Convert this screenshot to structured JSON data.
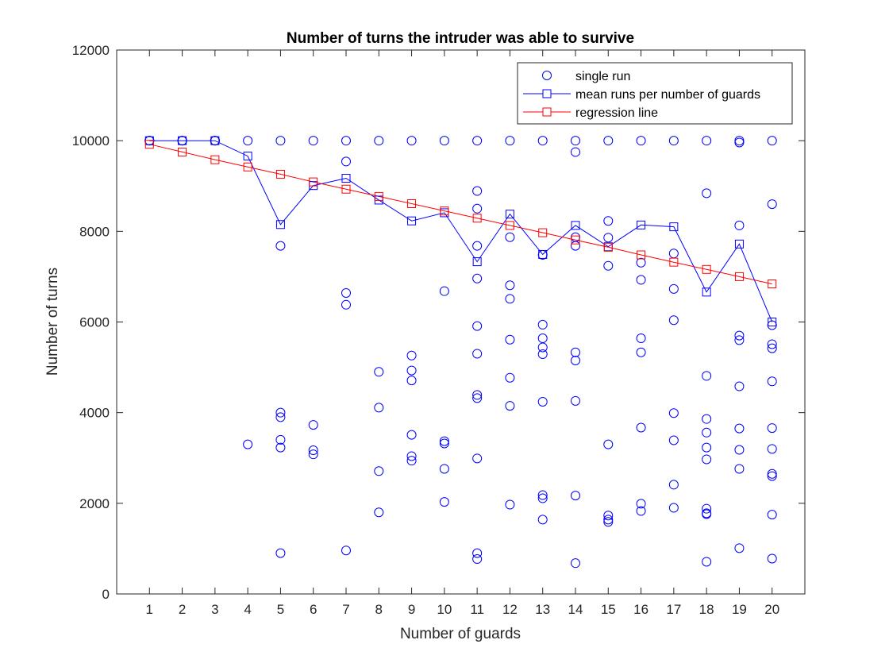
{
  "chart_data": {
    "type": "scatter",
    "title": "Number of turns the intruder was able to survive",
    "xlabel": "Number of guards",
    "ylabel": "Number of turns",
    "xlim": [
      0,
      21
    ],
    "ylim": [
      0,
      12000
    ],
    "xticks": [
      1,
      2,
      3,
      4,
      5,
      6,
      7,
      8,
      9,
      10,
      11,
      12,
      13,
      14,
      15,
      16,
      17,
      18,
      19,
      20
    ],
    "yticks": [
      0,
      2000,
      4000,
      6000,
      8000,
      10000,
      12000
    ],
    "grid": false,
    "legend_position": "top-right",
    "series": [
      {
        "name": "single run",
        "marker": "circle",
        "line": false,
        "color": "#0000ff",
        "points": [
          [
            1,
            10000
          ],
          [
            1,
            10000
          ],
          [
            1,
            10000
          ],
          [
            2,
            10000
          ],
          [
            2,
            10000
          ],
          [
            2,
            10000
          ],
          [
            3,
            10000
          ],
          [
            3,
            10000
          ],
          [
            3,
            10000
          ],
          [
            4,
            10000
          ],
          [
            4,
            3300
          ],
          [
            5,
            10000
          ],
          [
            5,
            7680
          ],
          [
            5,
            4000
          ],
          [
            5,
            3900
          ],
          [
            5,
            3400
          ],
          [
            5,
            3230
          ],
          [
            5,
            900
          ],
          [
            6,
            10000
          ],
          [
            6,
            3730
          ],
          [
            6,
            3170
          ],
          [
            6,
            3080
          ],
          [
            7,
            10000
          ],
          [
            7,
            9540
          ],
          [
            7,
            6640
          ],
          [
            7,
            6380
          ],
          [
            7,
            960
          ],
          [
            8,
            10000
          ],
          [
            8,
            4900
          ],
          [
            8,
            4110
          ],
          [
            8,
            2710
          ],
          [
            8,
            1800
          ],
          [
            9,
            10000
          ],
          [
            9,
            5260
          ],
          [
            9,
            4930
          ],
          [
            9,
            4710
          ],
          [
            9,
            3510
          ],
          [
            9,
            3040
          ],
          [
            9,
            2940
          ],
          [
            10,
            10000
          ],
          [
            10,
            6680
          ],
          [
            10,
            3370
          ],
          [
            10,
            3320
          ],
          [
            10,
            2760
          ],
          [
            10,
            2030
          ],
          [
            11,
            10000
          ],
          [
            11,
            8890
          ],
          [
            11,
            8500
          ],
          [
            11,
            7680
          ],
          [
            11,
            6960
          ],
          [
            11,
            5910
          ],
          [
            11,
            5300
          ],
          [
            11,
            4390
          ],
          [
            11,
            4320
          ],
          [
            11,
            2990
          ],
          [
            11,
            900
          ],
          [
            11,
            770
          ],
          [
            12,
            10000
          ],
          [
            12,
            7870
          ],
          [
            12,
            6810
          ],
          [
            12,
            6510
          ],
          [
            12,
            5610
          ],
          [
            12,
            4770
          ],
          [
            12,
            4150
          ],
          [
            12,
            1970
          ],
          [
            13,
            10000
          ],
          [
            13,
            7480
          ],
          [
            13,
            5940
          ],
          [
            13,
            5640
          ],
          [
            13,
            5440
          ],
          [
            13,
            5290
          ],
          [
            13,
            4240
          ],
          [
            13,
            2180
          ],
          [
            13,
            2110
          ],
          [
            13,
            1640
          ],
          [
            14,
            10000
          ],
          [
            14,
            9750
          ],
          [
            14,
            7870
          ],
          [
            14,
            7680
          ],
          [
            14,
            5330
          ],
          [
            14,
            5150
          ],
          [
            14,
            4260
          ],
          [
            14,
            2170
          ],
          [
            14,
            680
          ],
          [
            15,
            10000
          ],
          [
            15,
            8230
          ],
          [
            15,
            7860
          ],
          [
            15,
            7240
          ],
          [
            15,
            3300
          ],
          [
            15,
            1730
          ],
          [
            15,
            1640
          ],
          [
            15,
            1590
          ],
          [
            16,
            10000
          ],
          [
            16,
            7310
          ],
          [
            16,
            6930
          ],
          [
            16,
            5640
          ],
          [
            16,
            5330
          ],
          [
            16,
            3670
          ],
          [
            16,
            1990
          ],
          [
            16,
            1830
          ],
          [
            17,
            10000
          ],
          [
            17,
            7510
          ],
          [
            17,
            6730
          ],
          [
            17,
            6040
          ],
          [
            17,
            3990
          ],
          [
            17,
            3390
          ],
          [
            17,
            2410
          ],
          [
            17,
            1900
          ],
          [
            18,
            10000
          ],
          [
            18,
            8840
          ],
          [
            18,
            4810
          ],
          [
            18,
            3860
          ],
          [
            18,
            3560
          ],
          [
            18,
            3230
          ],
          [
            18,
            2970
          ],
          [
            18,
            1880
          ],
          [
            18,
            1780
          ],
          [
            18,
            1760
          ],
          [
            18,
            710
          ],
          [
            19,
            10000
          ],
          [
            19,
            9960
          ],
          [
            19,
            8130
          ],
          [
            19,
            5700
          ],
          [
            19,
            5600
          ],
          [
            19,
            4580
          ],
          [
            19,
            3650
          ],
          [
            19,
            3180
          ],
          [
            19,
            2760
          ],
          [
            19,
            1010
          ],
          [
            20,
            10000
          ],
          [
            20,
            8600
          ],
          [
            20,
            5930
          ],
          [
            20,
            5510
          ],
          [
            20,
            5420
          ],
          [
            20,
            4690
          ],
          [
            20,
            3660
          ],
          [
            20,
            3200
          ],
          [
            20,
            2650
          ],
          [
            20,
            2600
          ],
          [
            20,
            1750
          ],
          [
            20,
            780
          ]
        ]
      },
      {
        "name": "mean runs per number of guards",
        "marker": "square",
        "line": true,
        "color": "#0000ff",
        "x": [
          1,
          2,
          3,
          4,
          5,
          6,
          7,
          8,
          9,
          10,
          11,
          12,
          13,
          14,
          15,
          16,
          17,
          18,
          19,
          20
        ],
        "values": [
          10000,
          10000,
          10000,
          9660,
          8150,
          9010,
          9170,
          8690,
          8230,
          8410,
          7330,
          8380,
          7490,
          8130,
          7660,
          8140,
          8100,
          6660,
          7720,
          6000
        ]
      },
      {
        "name": "regression line",
        "marker": "square",
        "line": true,
        "color": "#ff0000",
        "x": [
          1,
          2,
          3,
          4,
          5,
          6,
          7,
          8,
          9,
          10,
          11,
          12,
          13,
          14,
          15,
          16,
          17,
          18,
          19,
          20
        ],
        "values": [
          9920,
          9750,
          9580,
          9420,
          9260,
          9090,
          8930,
          8770,
          8610,
          8450,
          8290,
          8130,
          7970,
          7810,
          7650,
          7480,
          7320,
          7160,
          7000,
          6840
        ]
      }
    ]
  }
}
